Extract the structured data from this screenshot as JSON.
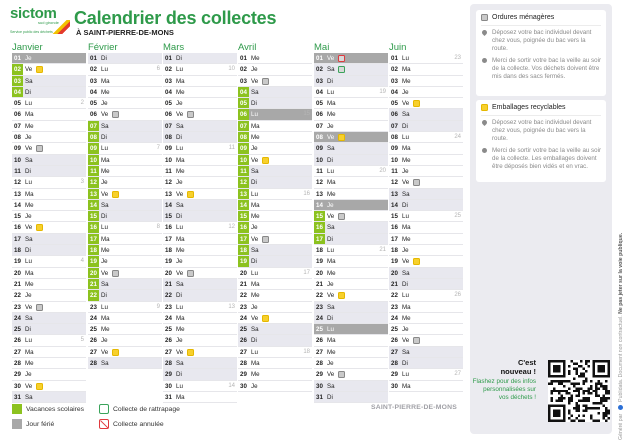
{
  "header": {
    "logo_brand": "sictom",
    "logo_sub": "sud gironde",
    "logo_tagline": "Service public des déchets",
    "title": "Calendrier des collectes",
    "subtitle": "À SAINT-PIERRE-DE-MONS"
  },
  "colors": {
    "brand_green": "#2e9a4a",
    "vacances": "#8cc21f",
    "ferie": "#a8a8a8",
    "ordures": "#c9c9c9",
    "recyclables": "#f7d02c",
    "rattrapage": "#3aa35a",
    "annulee": "#e0393e"
  },
  "months": [
    {
      "name": "Janvier",
      "days": [
        {
          "n": "01",
          "d": "Je",
          "ferie": true
        },
        {
          "n": "02",
          "d": "Ve",
          "vac": true,
          "icon": "rec"
        },
        {
          "n": "03",
          "d": "Sa",
          "vac": true,
          "we": true
        },
        {
          "n": "04",
          "d": "Di",
          "vac": true,
          "we": true
        },
        {
          "n": "05",
          "d": "Lu",
          "wk": "2"
        },
        {
          "n": "06",
          "d": "Ma"
        },
        {
          "n": "07",
          "d": "Me"
        },
        {
          "n": "08",
          "d": "Je"
        },
        {
          "n": "09",
          "d": "Ve",
          "icon": "om"
        },
        {
          "n": "10",
          "d": "Sa",
          "we": true
        },
        {
          "n": "11",
          "d": "Di",
          "we": true
        },
        {
          "n": "12",
          "d": "Lu",
          "wk": "3"
        },
        {
          "n": "13",
          "d": "Ma"
        },
        {
          "n": "14",
          "d": "Me"
        },
        {
          "n": "15",
          "d": "Je"
        },
        {
          "n": "16",
          "d": "Ve",
          "icon": "rec"
        },
        {
          "n": "17",
          "d": "Sa",
          "we": true
        },
        {
          "n": "18",
          "d": "Di",
          "we": true
        },
        {
          "n": "19",
          "d": "Lu",
          "wk": "4"
        },
        {
          "n": "20",
          "d": "Ma"
        },
        {
          "n": "21",
          "d": "Me"
        },
        {
          "n": "22",
          "d": "Je"
        },
        {
          "n": "23",
          "d": "Ve",
          "icon": "om"
        },
        {
          "n": "24",
          "d": "Sa",
          "we": true
        },
        {
          "n": "25",
          "d": "Di",
          "we": true
        },
        {
          "n": "26",
          "d": "Lu",
          "wk": "5"
        },
        {
          "n": "27",
          "d": "Ma"
        },
        {
          "n": "28",
          "d": "Me"
        },
        {
          "n": "29",
          "d": "Je"
        },
        {
          "n": "30",
          "d": "Ve",
          "icon": "rec"
        },
        {
          "n": "31",
          "d": "Sa",
          "we": true
        }
      ]
    },
    {
      "name": "Février",
      "days": [
        {
          "n": "01",
          "d": "Di",
          "we": true
        },
        {
          "n": "02",
          "d": "Lu",
          "wk": "6"
        },
        {
          "n": "03",
          "d": "Ma"
        },
        {
          "n": "04",
          "d": "Me"
        },
        {
          "n": "05",
          "d": "Je"
        },
        {
          "n": "06",
          "d": "Ve",
          "icon": "om"
        },
        {
          "n": "07",
          "d": "Sa",
          "vac": true,
          "we": true
        },
        {
          "n": "08",
          "d": "Di",
          "vac": true,
          "we": true
        },
        {
          "n": "09",
          "d": "Lu",
          "vac": true,
          "wk": "7"
        },
        {
          "n": "10",
          "d": "Ma",
          "vac": true
        },
        {
          "n": "11",
          "d": "Me",
          "vac": true
        },
        {
          "n": "12",
          "d": "Je",
          "vac": true
        },
        {
          "n": "13",
          "d": "Ve",
          "vac": true,
          "icon": "rec"
        },
        {
          "n": "14",
          "d": "Sa",
          "vac": true,
          "we": true
        },
        {
          "n": "15",
          "d": "Di",
          "vac": true,
          "we": true
        },
        {
          "n": "16",
          "d": "Lu",
          "vac": true,
          "wk": "8"
        },
        {
          "n": "17",
          "d": "Ma",
          "vac": true
        },
        {
          "n": "18",
          "d": "Me",
          "vac": true
        },
        {
          "n": "19",
          "d": "Je",
          "vac": true
        },
        {
          "n": "20",
          "d": "Ve",
          "vac": true,
          "icon": "om"
        },
        {
          "n": "21",
          "d": "Sa",
          "vac": true,
          "we": true
        },
        {
          "n": "22",
          "d": "Di",
          "vac": true,
          "we": true
        },
        {
          "n": "23",
          "d": "Lu",
          "wk": "9"
        },
        {
          "n": "24",
          "d": "Ma"
        },
        {
          "n": "25",
          "d": "Me"
        },
        {
          "n": "26",
          "d": "Je"
        },
        {
          "n": "27",
          "d": "Ve",
          "icon": "rec"
        },
        {
          "n": "28",
          "d": "Sa",
          "we": true
        }
      ]
    },
    {
      "name": "Mars",
      "days": [
        {
          "n": "01",
          "d": "Di",
          "we": true
        },
        {
          "n": "02",
          "d": "Lu",
          "wk": "10"
        },
        {
          "n": "03",
          "d": "Ma"
        },
        {
          "n": "04",
          "d": "Me"
        },
        {
          "n": "05",
          "d": "Je"
        },
        {
          "n": "06",
          "d": "Ve",
          "icon": "om"
        },
        {
          "n": "07",
          "d": "Sa",
          "we": true
        },
        {
          "n": "08",
          "d": "Di",
          "we": true
        },
        {
          "n": "09",
          "d": "Lu",
          "wk": "11"
        },
        {
          "n": "10",
          "d": "Ma"
        },
        {
          "n": "11",
          "d": "Me"
        },
        {
          "n": "12",
          "d": "Je"
        },
        {
          "n": "13",
          "d": "Ve",
          "icon": "rec"
        },
        {
          "n": "14",
          "d": "Sa",
          "we": true
        },
        {
          "n": "15",
          "d": "Di",
          "we": true
        },
        {
          "n": "16",
          "d": "Lu",
          "wk": "12"
        },
        {
          "n": "17",
          "d": "Ma"
        },
        {
          "n": "18",
          "d": "Me"
        },
        {
          "n": "19",
          "d": "Je"
        },
        {
          "n": "20",
          "d": "Ve",
          "icon": "om"
        },
        {
          "n": "21",
          "d": "Sa",
          "we": true
        },
        {
          "n": "22",
          "d": "Di",
          "we": true
        },
        {
          "n": "23",
          "d": "Lu",
          "wk": "13"
        },
        {
          "n": "24",
          "d": "Ma"
        },
        {
          "n": "25",
          "d": "Me"
        },
        {
          "n": "26",
          "d": "Je"
        },
        {
          "n": "27",
          "d": "Ve",
          "icon": "rec"
        },
        {
          "n": "28",
          "d": "Sa",
          "we": true
        },
        {
          "n": "29",
          "d": "Di",
          "we": true
        },
        {
          "n": "30",
          "d": "Lu",
          "wk": "14"
        },
        {
          "n": "31",
          "d": "Ma"
        }
      ]
    },
    {
      "name": "Avril",
      "days": [
        {
          "n": "01",
          "d": "Me"
        },
        {
          "n": "02",
          "d": "Je"
        },
        {
          "n": "03",
          "d": "Ve",
          "icon": "om"
        },
        {
          "n": "04",
          "d": "Sa",
          "vac": true,
          "we": true
        },
        {
          "n": "05",
          "d": "Di",
          "vac": true,
          "we": true
        },
        {
          "n": "06",
          "d": "Lu",
          "vac": true,
          "ferie": true,
          "wk": "15"
        },
        {
          "n": "07",
          "d": "Ma",
          "vac": true
        },
        {
          "n": "08",
          "d": "Me",
          "vac": true
        },
        {
          "n": "09",
          "d": "Je",
          "vac": true
        },
        {
          "n": "10",
          "d": "Ve",
          "vac": true,
          "icon": "rec"
        },
        {
          "n": "11",
          "d": "Sa",
          "vac": true,
          "we": true
        },
        {
          "n": "12",
          "d": "Di",
          "vac": true,
          "we": true
        },
        {
          "n": "13",
          "d": "Lu",
          "vac": true,
          "wk": "16"
        },
        {
          "n": "14",
          "d": "Ma",
          "vac": true
        },
        {
          "n": "15",
          "d": "Me",
          "vac": true
        },
        {
          "n": "16",
          "d": "Je",
          "vac": true
        },
        {
          "n": "17",
          "d": "Ve",
          "vac": true,
          "icon": "om"
        },
        {
          "n": "18",
          "d": "Sa",
          "vac": true,
          "we": true
        },
        {
          "n": "19",
          "d": "Di",
          "vac": true,
          "we": true
        },
        {
          "n": "20",
          "d": "Lu",
          "wk": "17"
        },
        {
          "n": "21",
          "d": "Ma"
        },
        {
          "n": "22",
          "d": "Me"
        },
        {
          "n": "23",
          "d": "Je"
        },
        {
          "n": "24",
          "d": "Ve",
          "icon": "rec"
        },
        {
          "n": "25",
          "d": "Sa",
          "we": true
        },
        {
          "n": "26",
          "d": "Di",
          "we": true
        },
        {
          "n": "27",
          "d": "Lu",
          "wk": "18"
        },
        {
          "n": "28",
          "d": "Ma"
        },
        {
          "n": "29",
          "d": "Me"
        },
        {
          "n": "30",
          "d": "Je"
        }
      ]
    },
    {
      "name": "Mai",
      "days": [
        {
          "n": "01",
          "d": "Ve",
          "ferie": true,
          "icon": "annul"
        },
        {
          "n": "02",
          "d": "Sa",
          "we": true,
          "icon": "ratt"
        },
        {
          "n": "03",
          "d": "Di",
          "we": true
        },
        {
          "n": "04",
          "d": "Lu",
          "wk": "19"
        },
        {
          "n": "05",
          "d": "Ma"
        },
        {
          "n": "06",
          "d": "Me"
        },
        {
          "n": "07",
          "d": "Je"
        },
        {
          "n": "08",
          "d": "Ve",
          "ferie": true,
          "icon": "rec"
        },
        {
          "n": "09",
          "d": "Sa",
          "we": true
        },
        {
          "n": "10",
          "d": "Di",
          "we": true
        },
        {
          "n": "11",
          "d": "Lu",
          "wk": "20"
        },
        {
          "n": "12",
          "d": "Ma"
        },
        {
          "n": "13",
          "d": "Me"
        },
        {
          "n": "14",
          "d": "Je",
          "ferie": true
        },
        {
          "n": "15",
          "d": "Ve",
          "vac": true,
          "icon": "om"
        },
        {
          "n": "16",
          "d": "Sa",
          "vac": true,
          "we": true
        },
        {
          "n": "17",
          "d": "Di",
          "vac": true,
          "we": true
        },
        {
          "n": "18",
          "d": "Lu",
          "wk": "21"
        },
        {
          "n": "19",
          "d": "Ma"
        },
        {
          "n": "20",
          "d": "Me"
        },
        {
          "n": "21",
          "d": "Je"
        },
        {
          "n": "22",
          "d": "Ve",
          "icon": "rec"
        },
        {
          "n": "23",
          "d": "Sa",
          "we": true
        },
        {
          "n": "24",
          "d": "Di",
          "we": true
        },
        {
          "n": "25",
          "d": "Lu",
          "ferie": true
        },
        {
          "n": "26",
          "d": "Ma"
        },
        {
          "n": "27",
          "d": "Me"
        },
        {
          "n": "28",
          "d": "Je"
        },
        {
          "n": "29",
          "d": "Ve",
          "icon": "om"
        },
        {
          "n": "30",
          "d": "Sa",
          "we": true
        },
        {
          "n": "31",
          "d": "Di",
          "we": true
        }
      ]
    },
    {
      "name": "Juin",
      "days": [
        {
          "n": "01",
          "d": "Lu",
          "wk": "23"
        },
        {
          "n": "02",
          "d": "Ma"
        },
        {
          "n": "03",
          "d": "Me"
        },
        {
          "n": "04",
          "d": "Je"
        },
        {
          "n": "05",
          "d": "Ve",
          "icon": "rec"
        },
        {
          "n": "06",
          "d": "Sa",
          "we": true
        },
        {
          "n": "07",
          "d": "Di",
          "we": true
        },
        {
          "n": "08",
          "d": "Lu",
          "wk": "24"
        },
        {
          "n": "09",
          "d": "Ma"
        },
        {
          "n": "10",
          "d": "Me"
        },
        {
          "n": "11",
          "d": "Je"
        },
        {
          "n": "12",
          "d": "Ve",
          "icon": "om"
        },
        {
          "n": "13",
          "d": "Sa",
          "we": true
        },
        {
          "n": "14",
          "d": "Di",
          "we": true
        },
        {
          "n": "15",
          "d": "Lu",
          "wk": "25"
        },
        {
          "n": "16",
          "d": "Ma"
        },
        {
          "n": "17",
          "d": "Me"
        },
        {
          "n": "18",
          "d": "Je"
        },
        {
          "n": "19",
          "d": "Ve",
          "icon": "rec"
        },
        {
          "n": "20",
          "d": "Sa",
          "we": true
        },
        {
          "n": "21",
          "d": "Di",
          "we": true
        },
        {
          "n": "22",
          "d": "Lu",
          "wk": "26"
        },
        {
          "n": "23",
          "d": "Ma"
        },
        {
          "n": "24",
          "d": "Me"
        },
        {
          "n": "25",
          "d": "Je"
        },
        {
          "n": "26",
          "d": "Ve",
          "icon": "om"
        },
        {
          "n": "27",
          "d": "Sa",
          "we": true
        },
        {
          "n": "28",
          "d": "Di",
          "we": true
        },
        {
          "n": "29",
          "d": "Lu",
          "wk": "27"
        },
        {
          "n": "30",
          "d": "Ma"
        }
      ]
    }
  ],
  "legend": {
    "vacances": "Vacances scolaires",
    "ferie": "Jour férié",
    "rattrapage": "Collecte de rattrapage",
    "annulee": "Collecte annulée"
  },
  "footer_commune": "SAINT-PIERRE-DE-MONS",
  "panel": {
    "ordures": {
      "title": "Ordures ménagères",
      "items": [
        "Déposez votre bac individuel devant chez vous, poignée du bac vers la route.",
        "Merci de sortir votre bac la veille au soir de la collecte. Vos déchets doivent être mis dans des sacs fermés."
      ]
    },
    "recyclables": {
      "title": "Emballages recyclables",
      "items": [
        "Déposez votre bac individuel devant chez vous, poignée du bac vers la route.",
        "Merci de sortir votre bac la veille au soir de la collecte. Les emballages doivent être déposés bien vidés et en vrac."
      ]
    },
    "qr": {
      "headline": "C'est nouveau !",
      "text": "Flashez pour des infos personnalisées sur vos déchets !"
    }
  },
  "side_note": {
    "generated": "Généré par",
    "brand": "Publidata.",
    "disclaimer": "Document non contractuel.",
    "warning": "Ne pas jeter sur la voie publique."
  }
}
